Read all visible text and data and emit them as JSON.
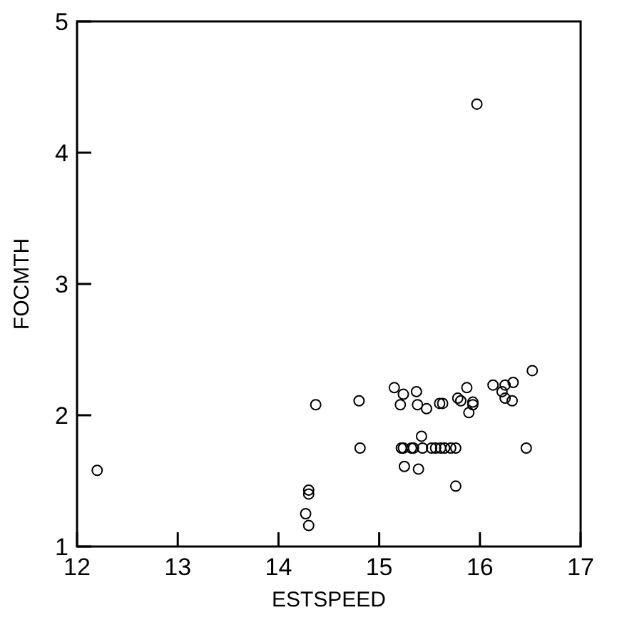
{
  "chart_data": {
    "type": "scatter",
    "xlabel": "ESTSPEED",
    "ylabel": "FOCMTH",
    "xlim": [
      12,
      17
    ],
    "ylim": [
      1,
      5
    ],
    "xticks": [
      12,
      13,
      14,
      15,
      16,
      17
    ],
    "yticks": [
      1,
      2,
      3,
      4,
      5
    ],
    "grid": false,
    "marker": "circle",
    "series": [
      {
        "color": "#000000",
        "x": [
          12.2,
          14.27,
          14.3,
          14.3,
          14.3,
          14.37,
          14.8,
          14.81,
          15.15,
          15.24,
          15.21,
          15.37,
          15.38,
          15.47,
          15.6,
          15.63,
          15.78,
          15.81,
          15.87,
          15.93,
          15.93,
          15.89,
          16.13,
          16.22,
          16.25,
          16.33,
          16.25,
          16.32,
          16.52,
          15.22,
          15.24,
          15.32,
          15.34,
          15.43,
          15.52,
          15.56,
          15.61,
          15.65,
          15.71,
          15.76,
          16.46,
          15.42,
          15.25,
          15.39,
          15.76,
          15.97
        ],
        "values": [
          1.58,
          1.25,
          1.16,
          1.4,
          1.43,
          2.08,
          2.11,
          1.75,
          2.21,
          2.16,
          2.08,
          2.18,
          2.08,
          2.05,
          2.09,
          2.09,
          2.13,
          2.11,
          2.21,
          2.1,
          2.08,
          2.02,
          2.23,
          2.18,
          2.23,
          2.25,
          2.13,
          2.11,
          2.34,
          1.75,
          1.75,
          1.75,
          1.75,
          1.75,
          1.75,
          1.75,
          1.75,
          1.75,
          1.75,
          1.75,
          1.75,
          1.84,
          1.61,
          1.59,
          1.46,
          4.37
        ]
      }
    ]
  }
}
